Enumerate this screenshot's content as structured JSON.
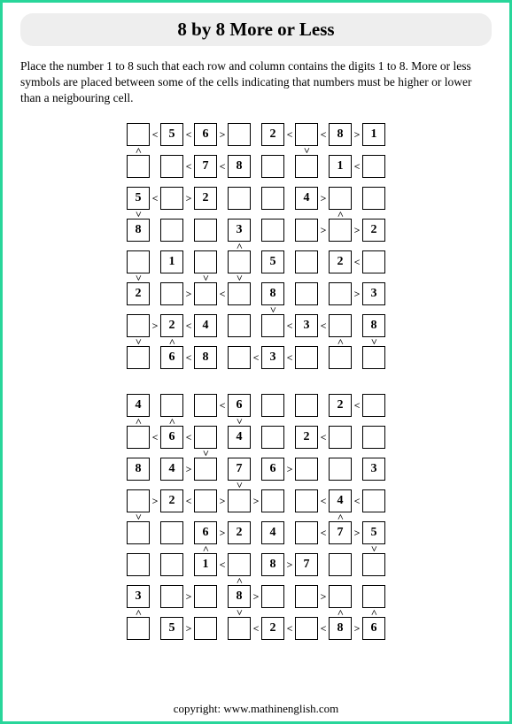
{
  "title": "8 by 8 More or Less",
  "instructions": "Place the number 1 to 8 such that each row and column contains the digits 1 to 8. More or less symbols are placed between some of the cells indicating that numbers must be higher or lower than a neigbouring cell.",
  "copyright": "copyright:    www.mathinenglish.com",
  "puzzles": [
    {
      "cells": [
        [
          "",
          "5",
          "6",
          "",
          "2",
          "",
          "8",
          "1"
        ],
        [
          "",
          "",
          "7",
          "8",
          "",
          "",
          "1",
          ""
        ],
        [
          "5",
          "",
          "2",
          "",
          "",
          "4",
          "",
          ""
        ],
        [
          "8",
          "",
          "",
          "3",
          "",
          "",
          "",
          "2"
        ],
        [
          "",
          "1",
          "",
          "",
          "5",
          "",
          "2",
          ""
        ],
        [
          "2",
          "",
          "",
          "",
          "8",
          "",
          "",
          "3"
        ],
        [
          "",
          "2",
          "4",
          "",
          "",
          "3",
          "",
          "8"
        ],
        [
          "",
          "6",
          "8",
          "",
          "3",
          "",
          "",
          ""
        ]
      ],
      "h_ops": [
        [
          "<",
          "<",
          ">",
          "",
          "<",
          "<",
          ">",
          ""
        ],
        [
          "",
          "<",
          "<",
          "",
          "",
          "",
          "<",
          ""
        ],
        [
          "<",
          ">",
          "",
          "",
          "",
          ">",
          "",
          ""
        ],
        [
          "",
          "",
          "",
          "",
          "",
          ">",
          ">",
          ""
        ],
        [
          "",
          "",
          "",
          "",
          "",
          "",
          "<",
          ""
        ],
        [
          "",
          ">",
          "<",
          "",
          "",
          "",
          ">",
          ""
        ],
        [
          ">",
          "<",
          "",
          "",
          "<",
          "<",
          "",
          ""
        ],
        [
          "",
          "<",
          "",
          "<",
          "<",
          "",
          "",
          ""
        ]
      ],
      "v_ops": [
        [
          "^",
          "",
          "",
          "",
          "",
          "v",
          "",
          ""
        ],
        [
          "",
          "",
          "",
          "",
          "",
          "",
          "",
          ""
        ],
        [
          "v",
          "",
          "",
          "",
          "",
          "",
          "^",
          ""
        ],
        [
          "",
          "",
          "",
          "^",
          "",
          "",
          "",
          ""
        ],
        [
          "v",
          "",
          "v",
          "v",
          "",
          "",
          "",
          ""
        ],
        [
          "",
          "",
          "",
          "",
          "v",
          "",
          "",
          ""
        ],
        [
          "v",
          "^",
          "",
          "",
          "",
          "",
          "^",
          "v"
        ]
      ]
    },
    {
      "cells": [
        [
          "4",
          "",
          "",
          "6",
          "",
          "",
          "2",
          ""
        ],
        [
          "",
          "6",
          "",
          "4",
          "",
          "2",
          "",
          ""
        ],
        [
          "8",
          "4",
          "",
          "7",
          "6",
          "",
          "",
          "3"
        ],
        [
          "",
          "2",
          "",
          "",
          "",
          "",
          "4",
          ""
        ],
        [
          "",
          "",
          "6",
          "2",
          "4",
          "",
          "7",
          "5"
        ],
        [
          "",
          "",
          "1",
          "",
          "8",
          "7",
          "",
          ""
        ],
        [
          "3",
          "",
          "",
          "8",
          "",
          "",
          "",
          ""
        ],
        [
          "",
          "5",
          "",
          "",
          "2",
          "",
          "8",
          "6"
        ]
      ],
      "h_ops": [
        [
          "",
          "",
          "<",
          "",
          "",
          "",
          "<",
          ""
        ],
        [
          "<",
          "<",
          "",
          "",
          "",
          "<",
          "",
          ""
        ],
        [
          "",
          ">",
          "",
          "",
          ">",
          "",
          "",
          ""
        ],
        [
          ">",
          "<",
          ">",
          ">",
          "",
          "<",
          "<",
          ""
        ],
        [
          "",
          "",
          ">",
          "",
          "",
          "<",
          ">",
          ""
        ],
        [
          "",
          "",
          "<",
          "",
          ">",
          "",
          "",
          ""
        ],
        [
          "",
          ">",
          "",
          ">",
          "",
          ">",
          "",
          ""
        ],
        [
          "",
          ">",
          "",
          "<",
          "<",
          "<",
          ">",
          ""
        ]
      ],
      "v_ops": [
        [
          "^",
          "^",
          "",
          "v",
          "",
          "",
          "",
          ""
        ],
        [
          "",
          "",
          "v",
          "",
          "",
          "",
          "",
          ""
        ],
        [
          "",
          "",
          "",
          "v",
          "",
          "",
          "",
          ""
        ],
        [
          "v",
          "",
          "",
          "",
          "",
          "",
          "^",
          ""
        ],
        [
          "",
          "",
          "^",
          "",
          "",
          "",
          "",
          "v"
        ],
        [
          "",
          "",
          "",
          "^",
          "",
          "",
          "",
          ""
        ],
        [
          "^",
          "",
          "",
          "v",
          "",
          "",
          "^",
          "^"
        ]
      ]
    }
  ]
}
